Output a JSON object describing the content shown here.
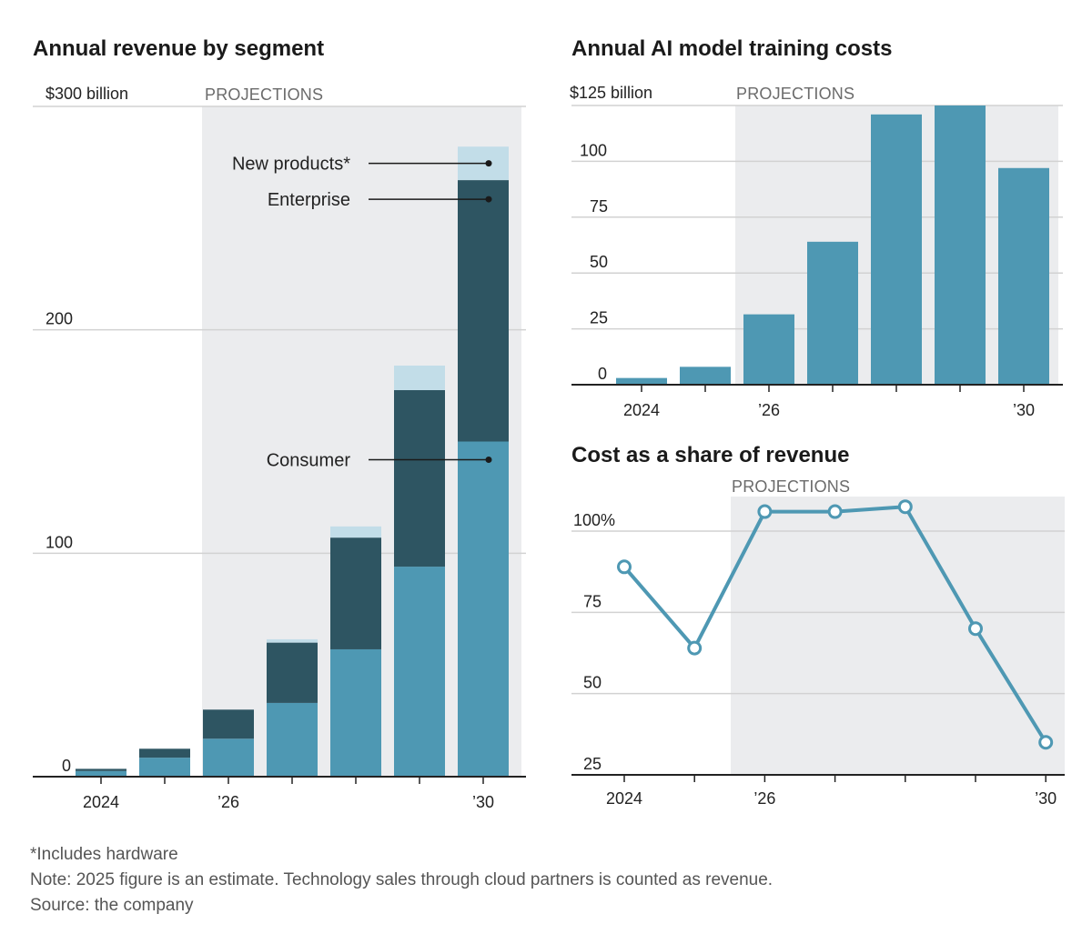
{
  "chart_data": [
    {
      "type": "bar",
      "stacked": true,
      "title": "Annual revenue by segment",
      "y_unit_label": "$300 billion",
      "projection_label": "PROJECTIONS",
      "projection_start_index": 2,
      "categories": [
        "2024",
        "2025",
        "2026",
        "2027",
        "2028",
        "2029",
        "2030"
      ],
      "tick_labels": [
        "2024",
        "",
        "’26",
        "",
        "",
        "",
        "’30"
      ],
      "ylim": [
        0,
        300
      ],
      "y_ticks": [
        {
          "value": 0,
          "label": "0"
        },
        {
          "value": 100,
          "label": "100"
        },
        {
          "value": 200,
          "label": "200"
        },
        {
          "value": 300,
          "label": "$300 billion"
        }
      ],
      "grid": true,
      "series": [
        {
          "name": "Consumer",
          "color": "#4e98b3",
          "values": [
            2.5,
            8.5,
            17,
            33,
            57,
            94,
            150
          ]
        },
        {
          "name": "Enterprise",
          "color": "#2e5562",
          "values": [
            1,
            4,
            13,
            27,
            50,
            79,
            117
          ]
        },
        {
          "name": "New products*",
          "color": "#c2dde8",
          "values": [
            0,
            0,
            0,
            1.5,
            5,
            11,
            15
          ]
        }
      ],
      "annotations": [
        "New products*",
        "Enterprise",
        "Consumer"
      ]
    },
    {
      "type": "bar",
      "title": "Annual AI model training costs",
      "y_unit_label": "$125 billion",
      "projection_label": "PROJECTIONS",
      "projection_start_index": 2,
      "categories": [
        "2024",
        "2025",
        "2026",
        "2027",
        "2028",
        "2029",
        "2030"
      ],
      "tick_labels": [
        "2024",
        "",
        "’26",
        "",
        "",
        "",
        "’30"
      ],
      "ylim": [
        0,
        125
      ],
      "y_ticks": [
        {
          "value": 0,
          "label": "0"
        },
        {
          "value": 25,
          "label": "25"
        },
        {
          "value": 50,
          "label": "50"
        },
        {
          "value": 75,
          "label": "75"
        },
        {
          "value": 100,
          "label": "100"
        },
        {
          "value": 125,
          "label": "$125 billion"
        }
      ],
      "grid": true,
      "color": "#4e98b3",
      "values": [
        3,
        8,
        31.5,
        64,
        121,
        125,
        97
      ]
    },
    {
      "type": "line",
      "title": "Cost as a share of revenue",
      "projection_label": "PROJECTIONS",
      "projection_start_index": 2,
      "categories": [
        "2024",
        "2025",
        "2026",
        "2027",
        "2028",
        "2029",
        "2030"
      ],
      "tick_labels": [
        "2024",
        "",
        "’26",
        "",
        "",
        "",
        "’30"
      ],
      "ylim": [
        25,
        105
      ],
      "y_ticks": [
        {
          "value": 25,
          "label": "25"
        },
        {
          "value": 50,
          "label": "50"
        },
        {
          "value": 75,
          "label": "75"
        },
        {
          "value": 100,
          "label": "100%"
        }
      ],
      "grid": true,
      "color": "#4e98b3",
      "values": [
        89,
        64,
        106,
        106,
        107.5,
        70,
        35
      ]
    }
  ],
  "footnotes": [
    "*Includes hardware",
    "Note: 2025 figure is an estimate. Technology sales through cloud partners is counted as revenue.",
    "Source: the company"
  ]
}
